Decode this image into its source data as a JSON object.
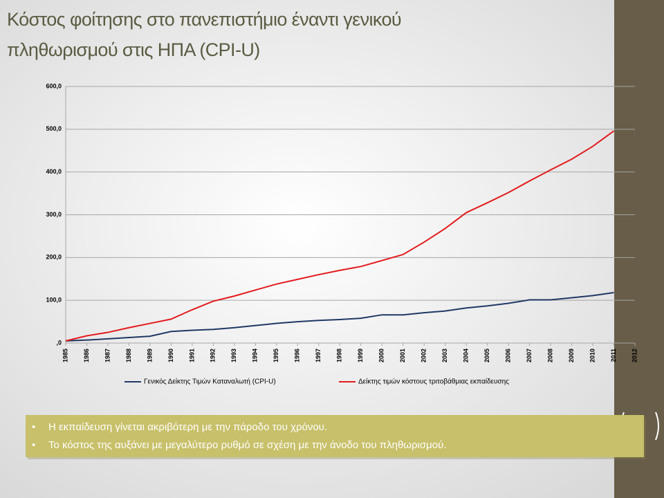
{
  "chart_data": {
    "type": "line",
    "title_lines": [
      "Κόστος φοίτησης στο πανεπιστήμιο έναντι γενικού",
      "πληθωρισμού στις ΗΠΑ (CPI-U)"
    ],
    "categories": [
      "1985",
      "1986",
      "1987",
      "1988",
      "1989",
      "1990",
      "1991",
      "1992",
      "1993",
      "1994",
      "1995",
      "1996",
      "1997",
      "1998",
      "1999",
      "2000",
      "2001",
      "2002",
      "2003",
      "2004",
      "2005",
      "2006",
      "2007",
      "2008",
      "2009",
      "2010",
      "2011",
      "2012"
    ],
    "series": [
      {
        "name": "Γενικός Δείκτης Τιμών Καταναλωτή (CPI-U)",
        "color": "#1f3864",
        "values": [
          5,
          7,
          10,
          13,
          16,
          27,
          30,
          32,
          36,
          41,
          46,
          50,
          53,
          55,
          58,
          66,
          66,
          71,
          75,
          82,
          87,
          93,
          101,
          101,
          106,
          111,
          118,
          null
        ]
      },
      {
        "name": "Δείκτης τιμών κόστους τριτοβάθμιας εκπαίδευσης",
        "color": "#e31a1c",
        "values": [
          5,
          17,
          25,
          36,
          46,
          56,
          78,
          98,
          110,
          124,
          138,
          149,
          160,
          170,
          179,
          193,
          207,
          236,
          268,
          305,
          328,
          352,
          379,
          405,
          430,
          460,
          496,
          null
        ]
      }
    ],
    "ylim": [
      0,
      600
    ],
    "yticks": [
      {
        "value": 0,
        "label": ",0"
      },
      {
        "value": 100,
        "label": "100,0"
      },
      {
        "value": 200,
        "label": "200,0"
      },
      {
        "value": 300,
        "label": "300,0"
      },
      {
        "value": 400,
        "label": "400,0"
      },
      {
        "value": 500,
        "label": "500,0"
      },
      {
        "value": 600,
        "label": "600,0"
      }
    ],
    "grid": true,
    "legend": "bottom"
  },
  "bullets": [
    "Η εκπαίδευση γίνεται ακριβότερη με την πάροδο του χρόνου.",
    "Το κόστος της αυξάνει με μεγαλύτερο ρυθμό σε σχέση με την άνοδο του πληθωρισμού."
  ]
}
